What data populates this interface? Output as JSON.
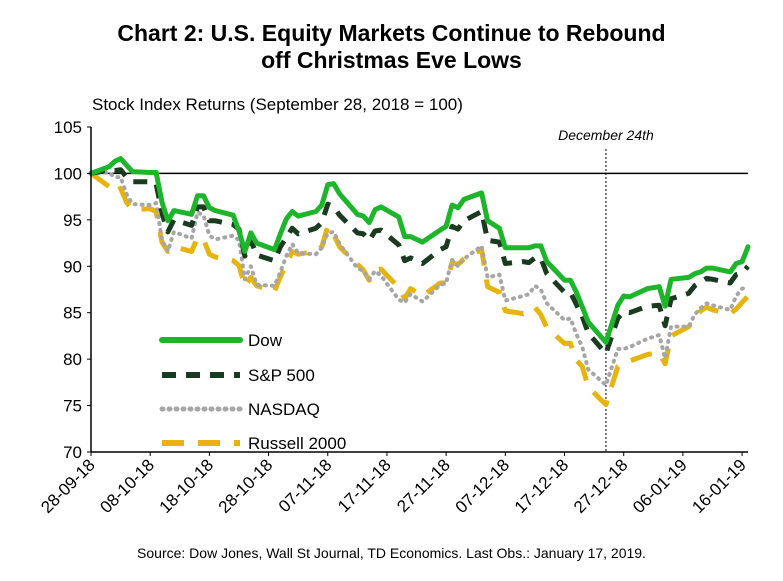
{
  "chart_data": {
    "type": "line",
    "title_line1": "Chart 2: U.S. Equity Markets Continue to Rebound",
    "title_line2": "off Christmas Eve Lows",
    "ylabel": "Stock Index Returns (September 28, 2018 = 100)",
    "source": "Source: Dow Jones, Wall St Journal, TD Economics. Last Obs.: January 17, 2019.",
    "annotation": "December 24th",
    "annotation_date": "2018-12-24",
    "ylim": [
      70,
      105
    ],
    "yticks": [
      "105",
      "100",
      "95",
      "90",
      "85",
      "80",
      "75",
      "70"
    ],
    "reference_line": 100,
    "x_start": "2018-09-28",
    "x_end": "2019-01-17",
    "xtick_labels": [
      {
        "label": "28-09-18",
        "date": "2018-09-28"
      },
      {
        "label": "08-10-18",
        "date": "2018-10-08"
      },
      {
        "label": "18-10-18",
        "date": "2018-10-18"
      },
      {
        "label": "28-10-18",
        "date": "2018-10-28"
      },
      {
        "label": "07-11-18",
        "date": "2018-11-07"
      },
      {
        "label": "17-11-18",
        "date": "2018-11-17"
      },
      {
        "label": "27-11-18",
        "date": "2018-11-27"
      },
      {
        "label": "07-12-18",
        "date": "2018-12-07"
      },
      {
        "label": "17-12-18",
        "date": "2018-12-17"
      },
      {
        "label": "27-12-18",
        "date": "2018-12-27"
      },
      {
        "label": "06-01-19",
        "date": "2019-01-06"
      },
      {
        "label": "16-01-19",
        "date": "2019-01-16"
      }
    ],
    "series": [
      {
        "name": "Dow",
        "color": "#1db52a",
        "style": "solid",
        "x": [
          "2018-09-28",
          "2018-10-01",
          "2018-10-02",
          "2018-10-03",
          "2018-10-04",
          "2018-10-05",
          "2018-10-08",
          "2018-10-09",
          "2018-10-10",
          "2018-10-11",
          "2018-10-12",
          "2018-10-15",
          "2018-10-16",
          "2018-10-17",
          "2018-10-18",
          "2018-10-19",
          "2018-10-22",
          "2018-10-23",
          "2018-10-24",
          "2018-10-25",
          "2018-10-26",
          "2018-10-29",
          "2018-10-30",
          "2018-10-31",
          "2018-11-01",
          "2018-11-02",
          "2018-11-05",
          "2018-11-06",
          "2018-11-07",
          "2018-11-08",
          "2018-11-09",
          "2018-11-12",
          "2018-11-13",
          "2018-11-14",
          "2018-11-15",
          "2018-11-16",
          "2018-11-19",
          "2018-11-20",
          "2018-11-21",
          "2018-11-23",
          "2018-11-26",
          "2018-11-27",
          "2018-11-28",
          "2018-11-29",
          "2018-11-30",
          "2018-12-03",
          "2018-12-04",
          "2018-12-06",
          "2018-12-07",
          "2018-12-10",
          "2018-12-11",
          "2018-12-12",
          "2018-12-13",
          "2018-12-14",
          "2018-12-17",
          "2018-12-18",
          "2018-12-19",
          "2018-12-20",
          "2018-12-21",
          "2018-12-24",
          "2018-12-26",
          "2018-12-27",
          "2018-12-28",
          "2018-12-31",
          "2019-01-02",
          "2019-01-03",
          "2019-01-04",
          "2019-01-07",
          "2019-01-08",
          "2019-01-09",
          "2019-01-10",
          "2019-01-11",
          "2019-01-14",
          "2019-01-15",
          "2019-01-16",
          "2019-01-17"
        ],
        "values": [
          100.0,
          100.7,
          101.3,
          101.6,
          100.9,
          100.2,
          100.1,
          100.1,
          96.9,
          94.9,
          96.0,
          95.6,
          97.6,
          97.6,
          96.3,
          96.0,
          95.5,
          93.8,
          91.6,
          93.6,
          92.5,
          91.8,
          93.5,
          95.1,
          95.9,
          95.4,
          95.9,
          96.6,
          98.8,
          98.9,
          97.8,
          95.6,
          95.4,
          94.7,
          96.1,
          96.4,
          95.3,
          93.2,
          93.2,
          92.6,
          93.9,
          94.3,
          96.6,
          96.3,
          97.2,
          97.9,
          94.9,
          94.1,
          92.0,
          92.0,
          92.0,
          92.2,
          92.2,
          90.5,
          88.5,
          88.5,
          87.2,
          85.6,
          84.0,
          81.8,
          85.8,
          86.8,
          86.7,
          87.6,
          87.8,
          85.7,
          88.6,
          88.8,
          89.2,
          89.4,
          89.8,
          89.8,
          89.4,
          90.3,
          90.5,
          92.1
        ]
      },
      {
        "name": "S&P 500",
        "color": "#1a3b1f",
        "style": "dash",
        "x": [
          "2018-09-28",
          "2018-10-01",
          "2018-10-02",
          "2018-10-03",
          "2018-10-04",
          "2018-10-05",
          "2018-10-08",
          "2018-10-09",
          "2018-10-10",
          "2018-10-11",
          "2018-10-12",
          "2018-10-15",
          "2018-10-16",
          "2018-10-17",
          "2018-10-18",
          "2018-10-19",
          "2018-10-22",
          "2018-10-23",
          "2018-10-24",
          "2018-10-25",
          "2018-10-26",
          "2018-10-29",
          "2018-10-30",
          "2018-10-31",
          "2018-11-01",
          "2018-11-02",
          "2018-11-05",
          "2018-11-06",
          "2018-11-07",
          "2018-11-08",
          "2018-11-09",
          "2018-11-12",
          "2018-11-13",
          "2018-11-14",
          "2018-11-15",
          "2018-11-16",
          "2018-11-19",
          "2018-11-20",
          "2018-11-21",
          "2018-11-23",
          "2018-11-26",
          "2018-11-27",
          "2018-11-28",
          "2018-11-29",
          "2018-11-30",
          "2018-12-03",
          "2018-12-04",
          "2018-12-06",
          "2018-12-07",
          "2018-12-10",
          "2018-12-11",
          "2018-12-12",
          "2018-12-13",
          "2018-12-14",
          "2018-12-17",
          "2018-12-18",
          "2018-12-19",
          "2018-12-20",
          "2018-12-21",
          "2018-12-24",
          "2018-12-26",
          "2018-12-27",
          "2018-12-28",
          "2018-12-31",
          "2019-01-02",
          "2019-01-03",
          "2019-01-04",
          "2019-01-07",
          "2019-01-08",
          "2019-01-09",
          "2019-01-10",
          "2019-01-11",
          "2019-01-14",
          "2019-01-15",
          "2019-01-16",
          "2019-01-17"
        ],
        "values": [
          100.0,
          100.4,
          100.3,
          100.4,
          99.6,
          99.1,
          99.1,
          98.9,
          95.7,
          93.7,
          95.0,
          94.4,
          96.4,
          96.4,
          94.9,
          94.9,
          94.5,
          94.0,
          91.1,
          92.8,
          91.2,
          90.6,
          92.1,
          93.1,
          94.1,
          93.5,
          94.1,
          94.7,
          96.7,
          96.4,
          95.5,
          93.6,
          93.5,
          92.8,
          93.8,
          93.9,
          92.3,
          90.6,
          90.9,
          90.3,
          91.8,
          92.1,
          94.3,
          94.0,
          94.9,
          95.9,
          92.8,
          92.6,
          90.3,
          90.5,
          90.4,
          90.9,
          90.9,
          89.2,
          87.2,
          87.2,
          85.9,
          84.6,
          82.8,
          80.6,
          84.4,
          85.1,
          85.0,
          85.7,
          85.8,
          83.6,
          86.5,
          87.1,
          87.9,
          88.3,
          88.7,
          88.6,
          88.2,
          89.1,
          89.3,
          90.0
        ]
      },
      {
        "name": "NASDAQ",
        "color": "#a6a6a6",
        "style": "dot",
        "x": [
          "2018-09-28",
          "2018-10-01",
          "2018-10-02",
          "2018-10-03",
          "2018-10-04",
          "2018-10-05",
          "2018-10-08",
          "2018-10-09",
          "2018-10-10",
          "2018-10-11",
          "2018-10-12",
          "2018-10-15",
          "2018-10-16",
          "2018-10-17",
          "2018-10-18",
          "2018-10-19",
          "2018-10-22",
          "2018-10-23",
          "2018-10-24",
          "2018-10-25",
          "2018-10-26",
          "2018-10-29",
          "2018-10-30",
          "2018-10-31",
          "2018-11-01",
          "2018-11-02",
          "2018-11-05",
          "2018-11-06",
          "2018-11-07",
          "2018-11-08",
          "2018-11-09",
          "2018-11-12",
          "2018-11-13",
          "2018-11-14",
          "2018-11-15",
          "2018-11-16",
          "2018-11-19",
          "2018-11-20",
          "2018-11-21",
          "2018-11-23",
          "2018-11-26",
          "2018-11-27",
          "2018-11-28",
          "2018-11-29",
          "2018-11-30",
          "2018-12-03",
          "2018-12-04",
          "2018-12-06",
          "2018-12-07",
          "2018-12-10",
          "2018-12-11",
          "2018-12-12",
          "2018-12-13",
          "2018-12-14",
          "2018-12-17",
          "2018-12-18",
          "2018-12-19",
          "2018-12-20",
          "2018-12-21",
          "2018-12-24",
          "2018-12-26",
          "2018-12-27",
          "2018-12-28",
          "2018-12-31",
          "2019-01-02",
          "2019-01-03",
          "2019-01-04",
          "2019-01-07",
          "2019-01-08",
          "2019-01-09",
          "2019-01-10",
          "2019-01-11",
          "2019-01-14",
          "2019-01-15",
          "2019-01-16",
          "2019-01-17"
        ],
        "values": [
          100.0,
          100.1,
          99.6,
          99.6,
          97.8,
          96.7,
          96.6,
          96.8,
          92.8,
          91.6,
          93.7,
          93.0,
          95.8,
          95.5,
          93.3,
          92.9,
          93.3,
          92.8,
          88.6,
          90.0,
          88.0,
          87.9,
          89.4,
          91.1,
          92.4,
          91.4,
          91.3,
          92.0,
          93.6,
          93.7,
          92.4,
          89.8,
          89.5,
          88.6,
          89.5,
          89.0,
          86.4,
          86.1,
          87.0,
          86.2,
          88.0,
          88.2,
          90.7,
          90.0,
          90.8,
          92.2,
          88.8,
          89.1,
          86.3,
          86.8,
          87.0,
          87.9,
          87.5,
          86.0,
          84.2,
          84.4,
          82.7,
          81.3,
          78.9,
          77.2,
          81.1,
          81.1,
          81.3,
          82.2,
          82.6,
          80.1,
          83.5,
          83.5,
          84.8,
          85.5,
          86.0,
          85.8,
          85.3,
          86.8,
          87.6,
          87.7
        ]
      },
      {
        "name": "Russell 2000",
        "color": "#e6b40d",
        "style": "longdash",
        "x": [
          "2018-09-28",
          "2018-10-01",
          "2018-10-02",
          "2018-10-03",
          "2018-10-04",
          "2018-10-05",
          "2018-10-08",
          "2018-10-09",
          "2018-10-10",
          "2018-10-11",
          "2018-10-12",
          "2018-10-15",
          "2018-10-16",
          "2018-10-17",
          "2018-10-18",
          "2018-10-19",
          "2018-10-22",
          "2018-10-23",
          "2018-10-24",
          "2018-10-25",
          "2018-10-26",
          "2018-10-29",
          "2018-10-30",
          "2018-10-31",
          "2018-11-01",
          "2018-11-02",
          "2018-11-05",
          "2018-11-06",
          "2018-11-07",
          "2018-11-08",
          "2018-11-09",
          "2018-11-12",
          "2018-11-13",
          "2018-11-14",
          "2018-11-15",
          "2018-11-16",
          "2018-11-19",
          "2018-11-20",
          "2018-11-21",
          "2018-11-23",
          "2018-11-26",
          "2018-11-27",
          "2018-11-28",
          "2018-11-29",
          "2018-11-30",
          "2018-12-03",
          "2018-12-04",
          "2018-12-06",
          "2018-12-07",
          "2018-12-10",
          "2018-12-11",
          "2018-12-12",
          "2018-12-13",
          "2018-12-14",
          "2018-12-17",
          "2018-12-18",
          "2018-12-19",
          "2018-12-20",
          "2018-12-21",
          "2018-12-24",
          "2018-12-26",
          "2018-12-27",
          "2018-12-28",
          "2018-12-31",
          "2019-01-02",
          "2019-01-03",
          "2019-01-04",
          "2019-01-07",
          "2019-01-08",
          "2019-01-09",
          "2019-01-10",
          "2019-01-11",
          "2019-01-14",
          "2019-01-15",
          "2019-01-16",
          "2019-01-17"
        ],
        "values": [
          100.0,
          98.6,
          97.9,
          98.4,
          96.9,
          96.1,
          96.2,
          95.9,
          92.6,
          91.6,
          92.1,
          91.6,
          93.1,
          92.9,
          91.3,
          91.0,
          90.6,
          90.1,
          87.8,
          88.8,
          87.9,
          87.3,
          88.9,
          90.2,
          91.6,
          91.3,
          91.6,
          92.1,
          94.3,
          93.4,
          92.1,
          90.2,
          89.6,
          88.5,
          89.6,
          89.7,
          87.7,
          86.5,
          87.6,
          86.8,
          88.2,
          88.2,
          90.4,
          90.2,
          90.8,
          91.8,
          87.8,
          87.2,
          85.2,
          84.9,
          85.2,
          85.6,
          84.8,
          83.4,
          81.7,
          81.7,
          79.9,
          79.2,
          77.0,
          75.1,
          79.2,
          79.6,
          79.8,
          80.5,
          80.7,
          79.5,
          82.5,
          83.5,
          84.5,
          85.2,
          85.6,
          85.3,
          84.9,
          85.4,
          86.1,
          86.8
        ]
      }
    ]
  }
}
